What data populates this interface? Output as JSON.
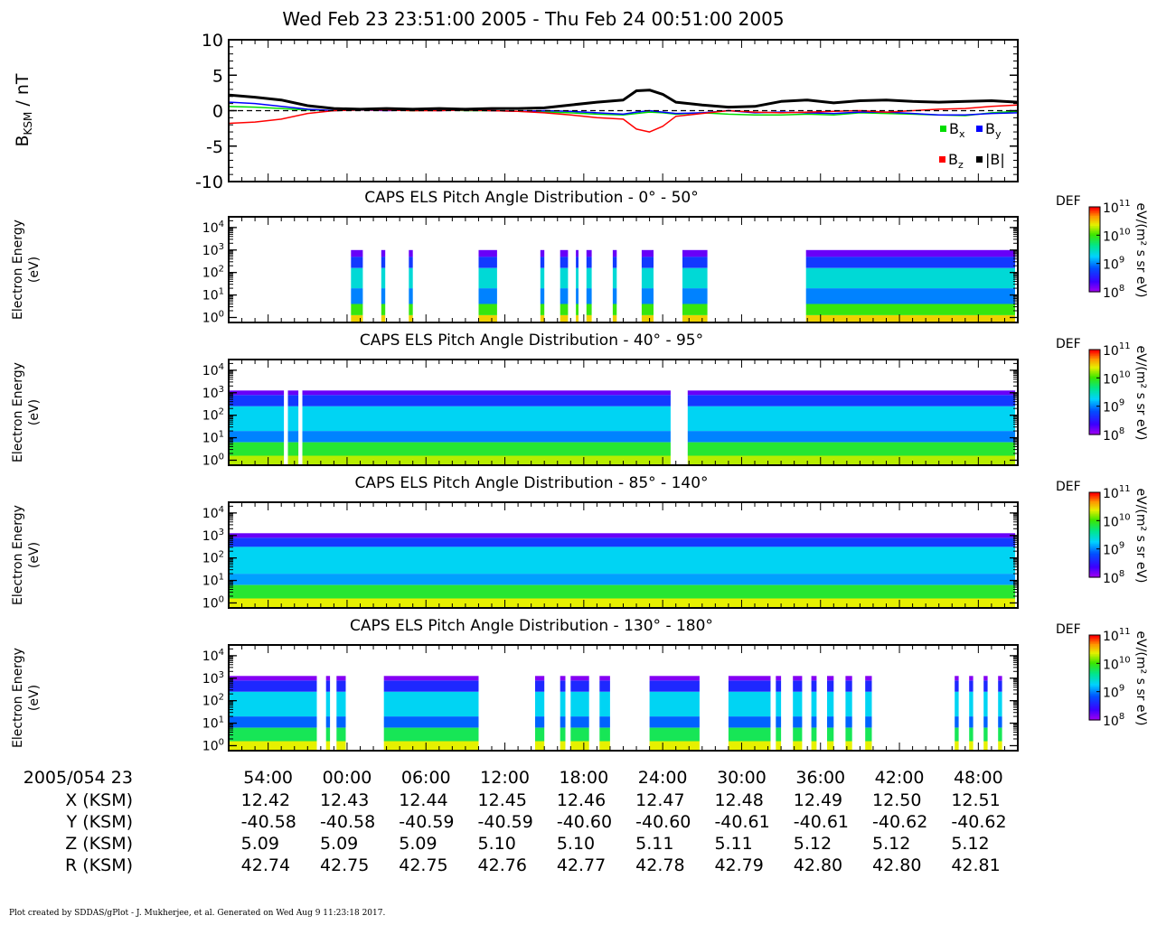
{
  "title": "Wed Feb 23 23:51:00 2005 - Thu Feb 24 00:51:00 2005",
  "footer": "Plot created by SDDAS/gPlot - J. Mukherjee, et al.  Generated on Wed Aug 9 11:23:18 2017.",
  "colors": {
    "bx": "#00dd00",
    "by": "#0000ff",
    "bz": "#ff0000",
    "b_total": "#000000"
  },
  "mag_panel": {
    "ylabel_main": "B",
    "ylabel_sub": "KSM",
    "ylabel_unit": " / nT",
    "legend": {
      "bx_main": "B",
      "bx_sub": "x",
      "by_main": "B",
      "by_sub": "y",
      "bz_main": "B",
      "bz_sub": "z",
      "b_label": "|B|"
    }
  },
  "els_panels": {
    "ylabel_line1": "Electron Energy",
    "ylabel_line2": "(eV)",
    "colorbar_title": "DEF",
    "colorbar_unit": "eV/(m² s sr eV)",
    "titles": [
      "CAPS ELS Pitch Angle Distribution - 0° - 50°",
      "CAPS ELS Pitch Angle Distribution - 40° - 95°",
      "CAPS ELS Pitch Angle Distribution - 85° - 140°",
      "CAPS ELS Pitch Angle Distribution - 130° - 180°"
    ]
  },
  "ephemeris": {
    "date_label": "2005/054 23",
    "rows": [
      {
        "label": "X (KSM)",
        "values": [
          "12.42",
          "12.43",
          "12.44",
          "12.45",
          "12.46",
          "12.47",
          "12.48",
          "12.49",
          "12.50",
          "12.51"
        ]
      },
      {
        "label": "Y (KSM)",
        "values": [
          "-40.58",
          "-40.58",
          "-40.59",
          "-40.59",
          "-40.60",
          "-40.60",
          "-40.61",
          "-40.61",
          "-40.62",
          "-40.62"
        ]
      },
      {
        "label": "Z (KSM)",
        "values": [
          "5.09",
          "5.09",
          "5.09",
          "5.10",
          "5.10",
          "5.11",
          "5.11",
          "5.12",
          "5.12",
          "5.12"
        ]
      },
      {
        "label": "R (KSM)",
        "values": [
          "42.74",
          "42.75",
          "42.75",
          "42.76",
          "42.77",
          "42.78",
          "42.79",
          "42.80",
          "42.80",
          "42.81"
        ]
      }
    ]
  },
  "chart_data": [
    {
      "type": "line",
      "panel": "magnetic field",
      "ylim": [
        -10,
        10
      ],
      "y_ticks": [
        10,
        5,
        0,
        -5,
        -10
      ],
      "x_range_minutes": [
        0,
        60
      ],
      "x_tick_labels": [
        "54:00",
        "00:00",
        "06:00",
        "12:00",
        "18:00",
        "24:00",
        "30:00",
        "36:00",
        "42:00",
        "48:00"
      ],
      "x_tick_minutes": [
        3,
        9,
        15,
        21,
        27,
        33,
        39,
        45,
        51,
        57
      ],
      "zero_line": "dashed",
      "series": [
        {
          "name": "Bx",
          "color": "#00dd00",
          "x": [
            0,
            2,
            4,
            6,
            8,
            10,
            12,
            14,
            16,
            18,
            20,
            22,
            24,
            26,
            28,
            30,
            31,
            32,
            33,
            34,
            36,
            38,
            40,
            42,
            44,
            46,
            48,
            50,
            52,
            54,
            56,
            58,
            60
          ],
          "y": [
            0.6,
            0.5,
            0.3,
            0.1,
            0.0,
            0.1,
            0.1,
            0.0,
            0.1,
            0.0,
            0.0,
            -0.1,
            -0.2,
            -0.3,
            -0.5,
            -0.6,
            -0.4,
            -0.2,
            -0.3,
            -0.5,
            -0.3,
            -0.5,
            -0.6,
            -0.6,
            -0.5,
            -0.6,
            -0.3,
            -0.4,
            -0.5,
            -0.6,
            -0.7,
            -0.3,
            -0.1
          ]
        },
        {
          "name": "By",
          "color": "#0000ff",
          "x": [
            0,
            2,
            4,
            6,
            8,
            10,
            12,
            14,
            16,
            18,
            20,
            22,
            24,
            26,
            28,
            30,
            31,
            32,
            33,
            34,
            36,
            38,
            40,
            42,
            44,
            46,
            48,
            50,
            52,
            54,
            56,
            58,
            60
          ],
          "y": [
            1.2,
            1.0,
            0.6,
            0.2,
            0.0,
            0.1,
            0.0,
            0.1,
            0.0,
            0.1,
            0.0,
            -0.1,
            0.0,
            -0.1,
            -0.3,
            -0.5,
            -0.2,
            0.0,
            -0.2,
            -0.4,
            -0.3,
            0.0,
            -0.3,
            -0.2,
            -0.3,
            -0.4,
            -0.2,
            -0.2,
            -0.4,
            -0.6,
            -0.6,
            -0.4,
            -0.3
          ]
        },
        {
          "name": "Bz",
          "color": "#ff0000",
          "x": [
            0,
            2,
            4,
            6,
            8,
            10,
            12,
            14,
            16,
            18,
            20,
            22,
            24,
            26,
            28,
            30,
            31,
            32,
            33,
            34,
            36,
            38,
            40,
            42,
            44,
            46,
            48,
            50,
            52,
            54,
            56,
            58,
            60
          ],
          "y": [
            -1.8,
            -1.6,
            -1.2,
            -0.4,
            0.0,
            0.1,
            0.1,
            0.0,
            0.0,
            0.1,
            0.0,
            -0.1,
            -0.3,
            -0.6,
            -1.0,
            -1.2,
            -2.6,
            -3.0,
            -2.2,
            -0.8,
            -0.4,
            0.0,
            -0.2,
            -0.3,
            -0.2,
            -0.1,
            0.0,
            -0.2,
            0.0,
            0.2,
            0.3,
            0.6,
            0.8
          ]
        },
        {
          "name": "|B|",
          "color": "#000000",
          "x": [
            0,
            2,
            4,
            6,
            8,
            10,
            12,
            14,
            16,
            18,
            20,
            22,
            24,
            26,
            28,
            30,
            31,
            32,
            33,
            34,
            36,
            38,
            40,
            42,
            44,
            46,
            48,
            50,
            52,
            54,
            56,
            58,
            60
          ],
          "y": [
            2.2,
            1.9,
            1.5,
            0.7,
            0.3,
            0.2,
            0.3,
            0.2,
            0.3,
            0.2,
            0.3,
            0.3,
            0.4,
            0.8,
            1.2,
            1.5,
            2.8,
            2.9,
            2.3,
            1.2,
            0.8,
            0.5,
            0.6,
            1.3,
            1.5,
            1.1,
            1.4,
            1.5,
            1.3,
            1.2,
            1.3,
            1.4,
            1.2
          ]
        }
      ]
    },
    {
      "type": "heatmap",
      "panel": "pitch angle 0°-50°",
      "y_scale": "log",
      "ylim_eV": [
        0.6,
        30000
      ],
      "y_ticks_eV": [
        1,
        10,
        100,
        1000,
        10000
      ],
      "color_scale": "log",
      "colorbar_ticks": [
        "10^8",
        "10^9",
        "10^10",
        "10^11"
      ],
      "color_range_def": [
        100000000.0,
        100000000000.0
      ],
      "coverage_minutes": [
        [
          9.3,
          10.2
        ],
        [
          11.6,
          11.9
        ],
        [
          13.7,
          14.0
        ],
        [
          19.0,
          20.4
        ],
        [
          23.7,
          24.0
        ],
        [
          25.2,
          25.8
        ],
        [
          26.4,
          26.6
        ],
        [
          27.2,
          27.6
        ],
        [
          29.2,
          29.5
        ],
        [
          31.4,
          32.3
        ],
        [
          34.5,
          36.4
        ],
        [
          43.9,
          59.8
        ]
      ],
      "bands": [
        {
          "log_e_min": -0.2,
          "log_e_max": 0.1,
          "log_def": 10.5
        },
        {
          "log_e_min": 0.1,
          "log_e_max": 0.6,
          "log_def": 10.0
        },
        {
          "log_e_min": 0.6,
          "log_e_max": 1.3,
          "log_def": 9.0
        },
        {
          "log_e_min": 1.3,
          "log_e_max": 2.2,
          "log_def": 9.4
        },
        {
          "log_e_min": 2.2,
          "log_e_max": 2.7,
          "log_def": 8.7
        },
        {
          "log_e_min": 2.7,
          "log_e_max": 3.0,
          "log_def": 8.2
        }
      ]
    },
    {
      "type": "heatmap",
      "panel": "pitch angle 40°-95°",
      "y_scale": "log",
      "ylim_eV": [
        0.6,
        30000
      ],
      "y_ticks_eV": [
        1,
        10,
        100,
        1000,
        10000
      ],
      "color_scale": "log",
      "colorbar_ticks": [
        "10^8",
        "10^9",
        "10^10",
        "10^11"
      ],
      "color_range_def": [
        100000000.0,
        100000000000.0
      ],
      "coverage_minutes": [
        [
          0,
          4.2
        ],
        [
          4.5,
          5.3
        ],
        [
          5.6,
          33.6
        ],
        [
          34.9,
          59.8
        ]
      ],
      "bands": [
        {
          "log_e_min": -0.2,
          "log_e_max": 0.2,
          "log_def": 10.3
        },
        {
          "log_e_min": 0.2,
          "log_e_max": 0.8,
          "log_def": 9.9
        },
        {
          "log_e_min": 0.8,
          "log_e_max": 1.3,
          "log_def": 9.0
        },
        {
          "log_e_min": 1.3,
          "log_e_max": 2.4,
          "log_def": 9.3
        },
        {
          "log_e_min": 2.4,
          "log_e_max": 2.9,
          "log_def": 8.7
        },
        {
          "log_e_min": 2.9,
          "log_e_max": 3.1,
          "log_def": 8.2
        }
      ]
    },
    {
      "type": "heatmap",
      "panel": "pitch angle 85°-140°",
      "y_scale": "log",
      "ylim_eV": [
        0.6,
        30000
      ],
      "y_ticks_eV": [
        1,
        10,
        100,
        1000,
        10000
      ],
      "color_scale": "log",
      "colorbar_ticks": [
        "10^8",
        "10^9",
        "10^10",
        "10^11"
      ],
      "color_range_def": [
        100000000.0,
        100000000000.0
      ],
      "coverage_minutes": [
        [
          0,
          59.8
        ]
      ],
      "bands": [
        {
          "log_e_min": -0.2,
          "log_e_max": 0.2,
          "log_def": 10.4
        },
        {
          "log_e_min": 0.2,
          "log_e_max": 0.8,
          "log_def": 9.9
        },
        {
          "log_e_min": 0.8,
          "log_e_max": 1.3,
          "log_def": 9.1
        },
        {
          "log_e_min": 1.3,
          "log_e_max": 2.5,
          "log_def": 9.3
        },
        {
          "log_e_min": 2.5,
          "log_e_max": 2.9,
          "log_def": 8.7
        },
        {
          "log_e_min": 2.9,
          "log_e_max": 3.1,
          "log_def": 8.2
        }
      ]
    },
    {
      "type": "heatmap",
      "panel": "pitch angle 130°-180°",
      "y_scale": "log",
      "ylim_eV": [
        0.6,
        30000
      ],
      "y_ticks_eV": [
        1,
        10,
        100,
        1000,
        10000
      ],
      "color_scale": "log",
      "colorbar_ticks": [
        "10^8",
        "10^9",
        "10^10",
        "10^11"
      ],
      "color_range_def": [
        100000000.0,
        100000000000.0
      ],
      "coverage_minutes": [
        [
          0,
          6.7
        ],
        [
          7.4,
          7.7
        ],
        [
          8.2,
          8.9
        ],
        [
          11.8,
          19.0
        ],
        [
          23.3,
          24.0
        ],
        [
          25.2,
          25.6
        ],
        [
          26.0,
          27.4
        ],
        [
          28.2,
          29.0
        ],
        [
          32.0,
          35.8
        ],
        [
          38.0,
          41.2
        ],
        [
          41.6,
          42.0
        ],
        [
          42.9,
          43.6
        ],
        [
          44.3,
          44.7
        ],
        [
          45.5,
          46.0
        ],
        [
          46.9,
          47.4
        ],
        [
          48.4,
          48.9
        ],
        [
          55.2,
          55.5
        ],
        [
          56.3,
          56.6
        ],
        [
          57.4,
          57.7
        ],
        [
          58.5,
          58.8
        ]
      ],
      "bands": [
        {
          "log_e_min": -0.2,
          "log_e_max": 0.2,
          "log_def": 10.4
        },
        {
          "log_e_min": 0.2,
          "log_e_max": 0.8,
          "log_def": 9.8
        },
        {
          "log_e_min": 0.8,
          "log_e_max": 1.3,
          "log_def": 8.9
        },
        {
          "log_e_min": 1.3,
          "log_e_max": 2.4,
          "log_def": 9.3
        },
        {
          "log_e_min": 2.4,
          "log_e_max": 2.9,
          "log_def": 8.6
        },
        {
          "log_e_min": 2.9,
          "log_e_max": 3.1,
          "log_def": 8.1
        }
      ]
    }
  ]
}
